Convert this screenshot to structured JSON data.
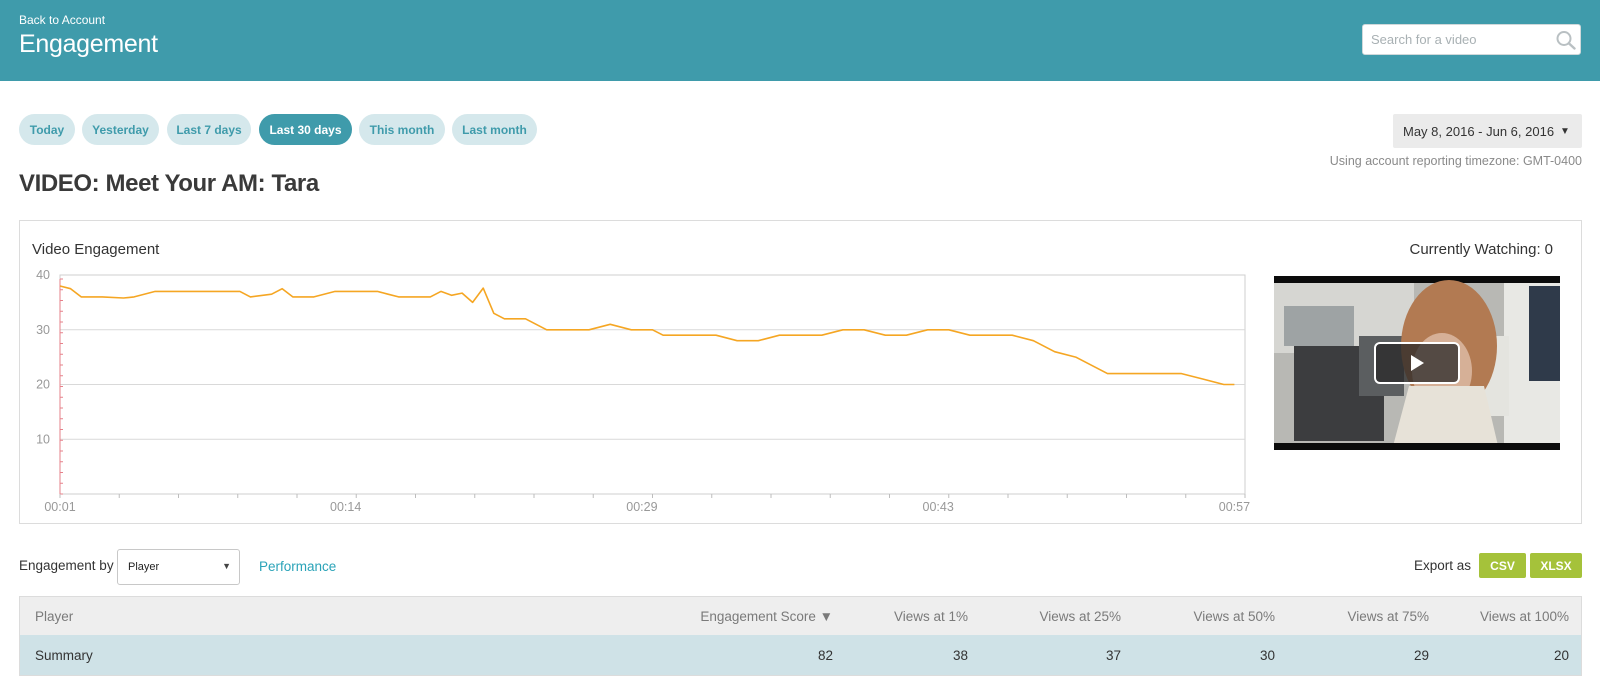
{
  "header": {
    "back_link": "Back to Account",
    "title": "Engagement",
    "search_placeholder": "Search for a video",
    "background": "#3f9bab"
  },
  "date_ranges": [
    {
      "label": "Today",
      "active": false
    },
    {
      "label": "Yesterday",
      "active": false
    },
    {
      "label": "Last 7 days",
      "active": false
    },
    {
      "label": "Last 30 days",
      "active": true
    },
    {
      "label": "This month",
      "active": false
    },
    {
      "label": "Last month",
      "active": false
    }
  ],
  "date_picker": {
    "value": "May 8, 2016 - Jun 6, 2016",
    "caret": "▼"
  },
  "timezone_note": "Using account reporting timezone: GMT-0400",
  "video_title": "VIDEO: Meet Your AM: Tara",
  "chart_panel": {
    "title": "Video Engagement",
    "watching_label": "Currently Watching:",
    "watching_value": "0"
  },
  "chart_data": {
    "type": "line",
    "title": "Video Engagement",
    "xlabel": "",
    "ylabel": "",
    "xlim": [
      1,
      57
    ],
    "ylim": [
      0,
      40
    ],
    "y_ticks": [
      10,
      20,
      30,
      40
    ],
    "x_tick_labels": [
      "00:01",
      "00:14",
      "00:29",
      "00:43",
      "00:57"
    ],
    "x_tick_values": [
      1,
      14.5,
      28.5,
      42.5,
      56.5
    ],
    "grid": true,
    "line_color": "#f5a623",
    "series": [
      {
        "x": [
          1,
          1.5,
          2,
          3,
          4,
          4.5,
          5.5,
          6.5,
          7.5,
          8.5,
          9.5,
          10,
          11,
          11.5,
          12,
          13,
          14,
          15,
          16,
          16.5,
          17,
          18,
          18.5,
          19,
          19.5,
          20,
          20.5,
          21,
          21.5,
          22,
          23,
          24,
          25,
          26,
          27,
          28,
          29,
          29.5,
          30,
          31,
          32,
          33,
          34,
          35,
          36,
          37,
          38,
          39,
          40,
          41,
          42,
          43,
          44,
          45,
          46,
          47,
          48,
          49,
          50,
          50.5,
          51,
          51.5,
          52,
          53,
          54,
          55,
          56,
          56.5
        ],
        "y": [
          38,
          37.5,
          36,
          36,
          35.8,
          36,
          37,
          37,
          37,
          37,
          37,
          36,
          36.5,
          37.5,
          36,
          36,
          37,
          37,
          37,
          36.5,
          36,
          36,
          36,
          37,
          36.3,
          36.7,
          35,
          37.6,
          33,
          32,
          32,
          30,
          30,
          30,
          31,
          30,
          30,
          29,
          29,
          29,
          29,
          28,
          28,
          29,
          29,
          29,
          30,
          30,
          29,
          29,
          30,
          30,
          29,
          29,
          29,
          28,
          26,
          25,
          23,
          22,
          22,
          22,
          22,
          22,
          22,
          21,
          20,
          20
        ]
      }
    ]
  },
  "engagement_by": {
    "label": "Engagement by",
    "selected": "Player",
    "caret": "▼"
  },
  "performance_link": "Performance",
  "export": {
    "label": "Export as",
    "csv": "CSV",
    "xlsx": "XLSX",
    "color": "#a5c23a"
  },
  "table": {
    "columns": [
      "Player",
      "Engagement Score ▼",
      "Views at 1%",
      "Views at 25%",
      "Views at 50%",
      "Views at 75%",
      "Views at 100%"
    ],
    "summary": [
      "Summary",
      "82",
      "38",
      "37",
      "30",
      "29",
      "20"
    ]
  }
}
